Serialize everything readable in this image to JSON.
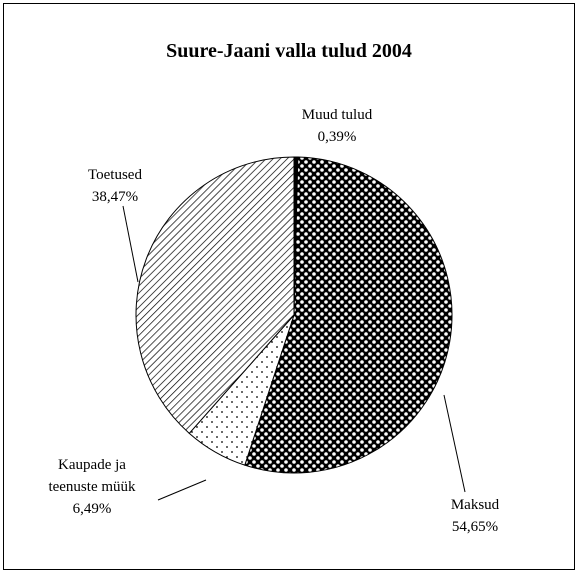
{
  "chart_data": {
    "type": "pie",
    "title": "Suure-Jaani valla tulud 2004",
    "categories": [
      "Muud tulud",
      "Maksud",
      "Kaupade ja teenuste müük",
      "Toetused"
    ],
    "values": [
      0.39,
      54.65,
      6.49,
      38.47
    ],
    "value_labels": [
      "0,39%",
      "54,65%",
      "6,49%",
      "38,47%"
    ]
  }
}
